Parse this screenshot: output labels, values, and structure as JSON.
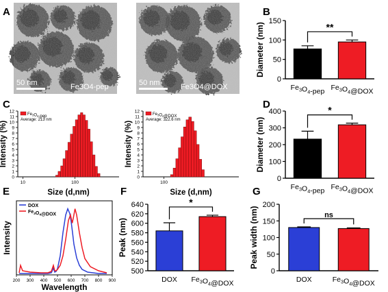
{
  "figure": {
    "panels": {
      "A": {
        "letter": "A",
        "left": {
          "scale_bar": "50 nm",
          "label": "Fe3O4-pep"
        },
        "right": {
          "scale_bar": "50 nm",
          "label": "Fe3O4@DOX"
        }
      },
      "B": {
        "letter": "B"
      },
      "C": {
        "letter": "C"
      },
      "D": {
        "letter": "D"
      },
      "E": {
        "letter": "E"
      },
      "F": {
        "letter": "F"
      },
      "G": {
        "letter": "G"
      }
    },
    "colors": {
      "black": "#000000",
      "red": "#ee1c24",
      "blue": "#2b3fd6",
      "gray": "#8a8a8a"
    }
  },
  "chart_data": [
    {
      "id": "B",
      "type": "bar",
      "categories": [
        "Fe3O4-pep",
        "Fe3O4@DOX"
      ],
      "values": [
        77,
        95
      ],
      "errors": [
        8,
        5
      ],
      "ylabel": "Diameter (nm)",
      "ylim": [
        0,
        150
      ],
      "yticks": [
        0,
        50,
        100,
        150
      ],
      "significance": "**",
      "colors": [
        "#000000",
        "#ee1c24"
      ]
    },
    {
      "id": "C1",
      "type": "bar",
      "subtype": "histogram",
      "xscale": "log",
      "legend": "Fe3O4-pep",
      "legend_note": "Average: 213 nm",
      "xlabel": "Size (d,nm)",
      "ylabel": "Intensity (%)",
      "ylim": [
        0,
        12
      ],
      "yticks": [
        0,
        1,
        2,
        3,
        4,
        5,
        6,
        7,
        8,
        9,
        10,
        11,
        12
      ],
      "xticks": [
        "10",
        "100"
      ],
      "x": [
        45,
        50,
        56,
        62,
        69,
        77,
        86,
        96,
        107,
        120,
        134,
        149,
        166,
        185,
        206,
        230,
        256,
        286
      ],
      "values": [
        0.3,
        1.0,
        2.0,
        3.3,
        4.8,
        6.3,
        7.8,
        9.2,
        10.4,
        11.3,
        11.7,
        11.3,
        10.3,
        8.7,
        6.4,
        4.0,
        1.9,
        0.6
      ]
    },
    {
      "id": "C2",
      "type": "bar",
      "subtype": "histogram",
      "xscale": "log",
      "legend": "Fe3O4@DOX",
      "legend_note": "Average: 322.6 nm",
      "xlabel": "Size (d,nm)",
      "ylabel": "Intensity (%)",
      "ylim": [
        0,
        12
      ],
      "yticks": [
        0,
        1,
        2,
        3,
        4,
        5,
        6,
        7,
        8,
        9,
        10,
        11,
        12
      ],
      "xticks": [
        "100"
      ],
      "x": [
        130,
        142,
        155,
        169,
        184,
        200,
        218,
        238,
        259,
        282,
        308,
        335,
        365
      ],
      "values": [
        0.4,
        1.6,
        3.3,
        5.3,
        7.3,
        9.1,
        10.4,
        10.9,
        10.1,
        8.4,
        5.9,
        3.2,
        1.3
      ]
    },
    {
      "id": "D",
      "type": "bar",
      "categories": [
        "Fe3O4-pep",
        "Fe3O4@DOX"
      ],
      "values": [
        233,
        318
      ],
      "errors": [
        47,
        10
      ],
      "ylabel": "Diameter (nm)",
      "ylim": [
        0,
        400
      ],
      "yticks": [
        0,
        100,
        200,
        300,
        400
      ],
      "significance": "*",
      "colors": [
        "#000000",
        "#ee1c24"
      ]
    },
    {
      "id": "E",
      "type": "line",
      "xlabel": "Wavelength",
      "ylabel": "Intensity",
      "xlim": [
        200,
        900
      ],
      "xticks": [
        200,
        300,
        400,
        500,
        600,
        700,
        800,
        900
      ],
      "series": [
        {
          "name": "DOX",
          "color": "#2b3fd6",
          "x": [
            220,
            300,
            380,
            430,
            455,
            470,
            480,
            490,
            500,
            520,
            540,
            560,
            575,
            590,
            600,
            610,
            620,
            640,
            660,
            680,
            720,
            800,
            860
          ],
          "y": [
            2,
            2,
            2,
            2,
            3,
            10,
            4,
            5,
            9,
            28,
            62,
            88,
            97,
            90,
            78,
            62,
            45,
            25,
            14,
            8,
            4,
            2,
            2
          ]
        },
        {
          "name": "Fe3O4@DOX",
          "color": "#ee1c24",
          "x": [
            220,
            230,
            245,
            300,
            380,
            430,
            455,
            470,
            480,
            490,
            500,
            520,
            540,
            560,
            580,
            595,
            608,
            618,
            628,
            640,
            660,
            680,
            700,
            740,
            800,
            860
          ],
          "y": [
            3,
            14,
            6,
            4,
            3,
            3,
            5,
            14,
            6,
            6,
            8,
            14,
            28,
            52,
            80,
            88,
            76,
            86,
            97,
            88,
            62,
            40,
            24,
            12,
            6,
            3
          ]
        }
      ]
    },
    {
      "id": "F",
      "type": "bar",
      "categories": [
        "DOX",
        "Fe3O4@DOX"
      ],
      "values": [
        584,
        614
      ],
      "errors": [
        17,
        3
      ],
      "ylabel": "Peak (nm)",
      "ylim": [
        500,
        640
      ],
      "yticks": [
        500,
        520,
        540,
        560,
        580,
        600,
        620,
        640
      ],
      "significance": "*",
      "colors": [
        "#2b3fd6",
        "#ee1c24"
      ]
    },
    {
      "id": "G",
      "type": "bar",
      "categories": [
        "DOX",
        "Fe3O4@DOX"
      ],
      "values": [
        130,
        127
      ],
      "errors": [
        2,
        2
      ],
      "ylabel": "Peak width (nm)",
      "ylim": [
        0,
        200
      ],
      "yticks": [
        0,
        50,
        100,
        150,
        200
      ],
      "significance": "ns",
      "colors": [
        "#2b3fd6",
        "#ee1c24"
      ]
    }
  ]
}
